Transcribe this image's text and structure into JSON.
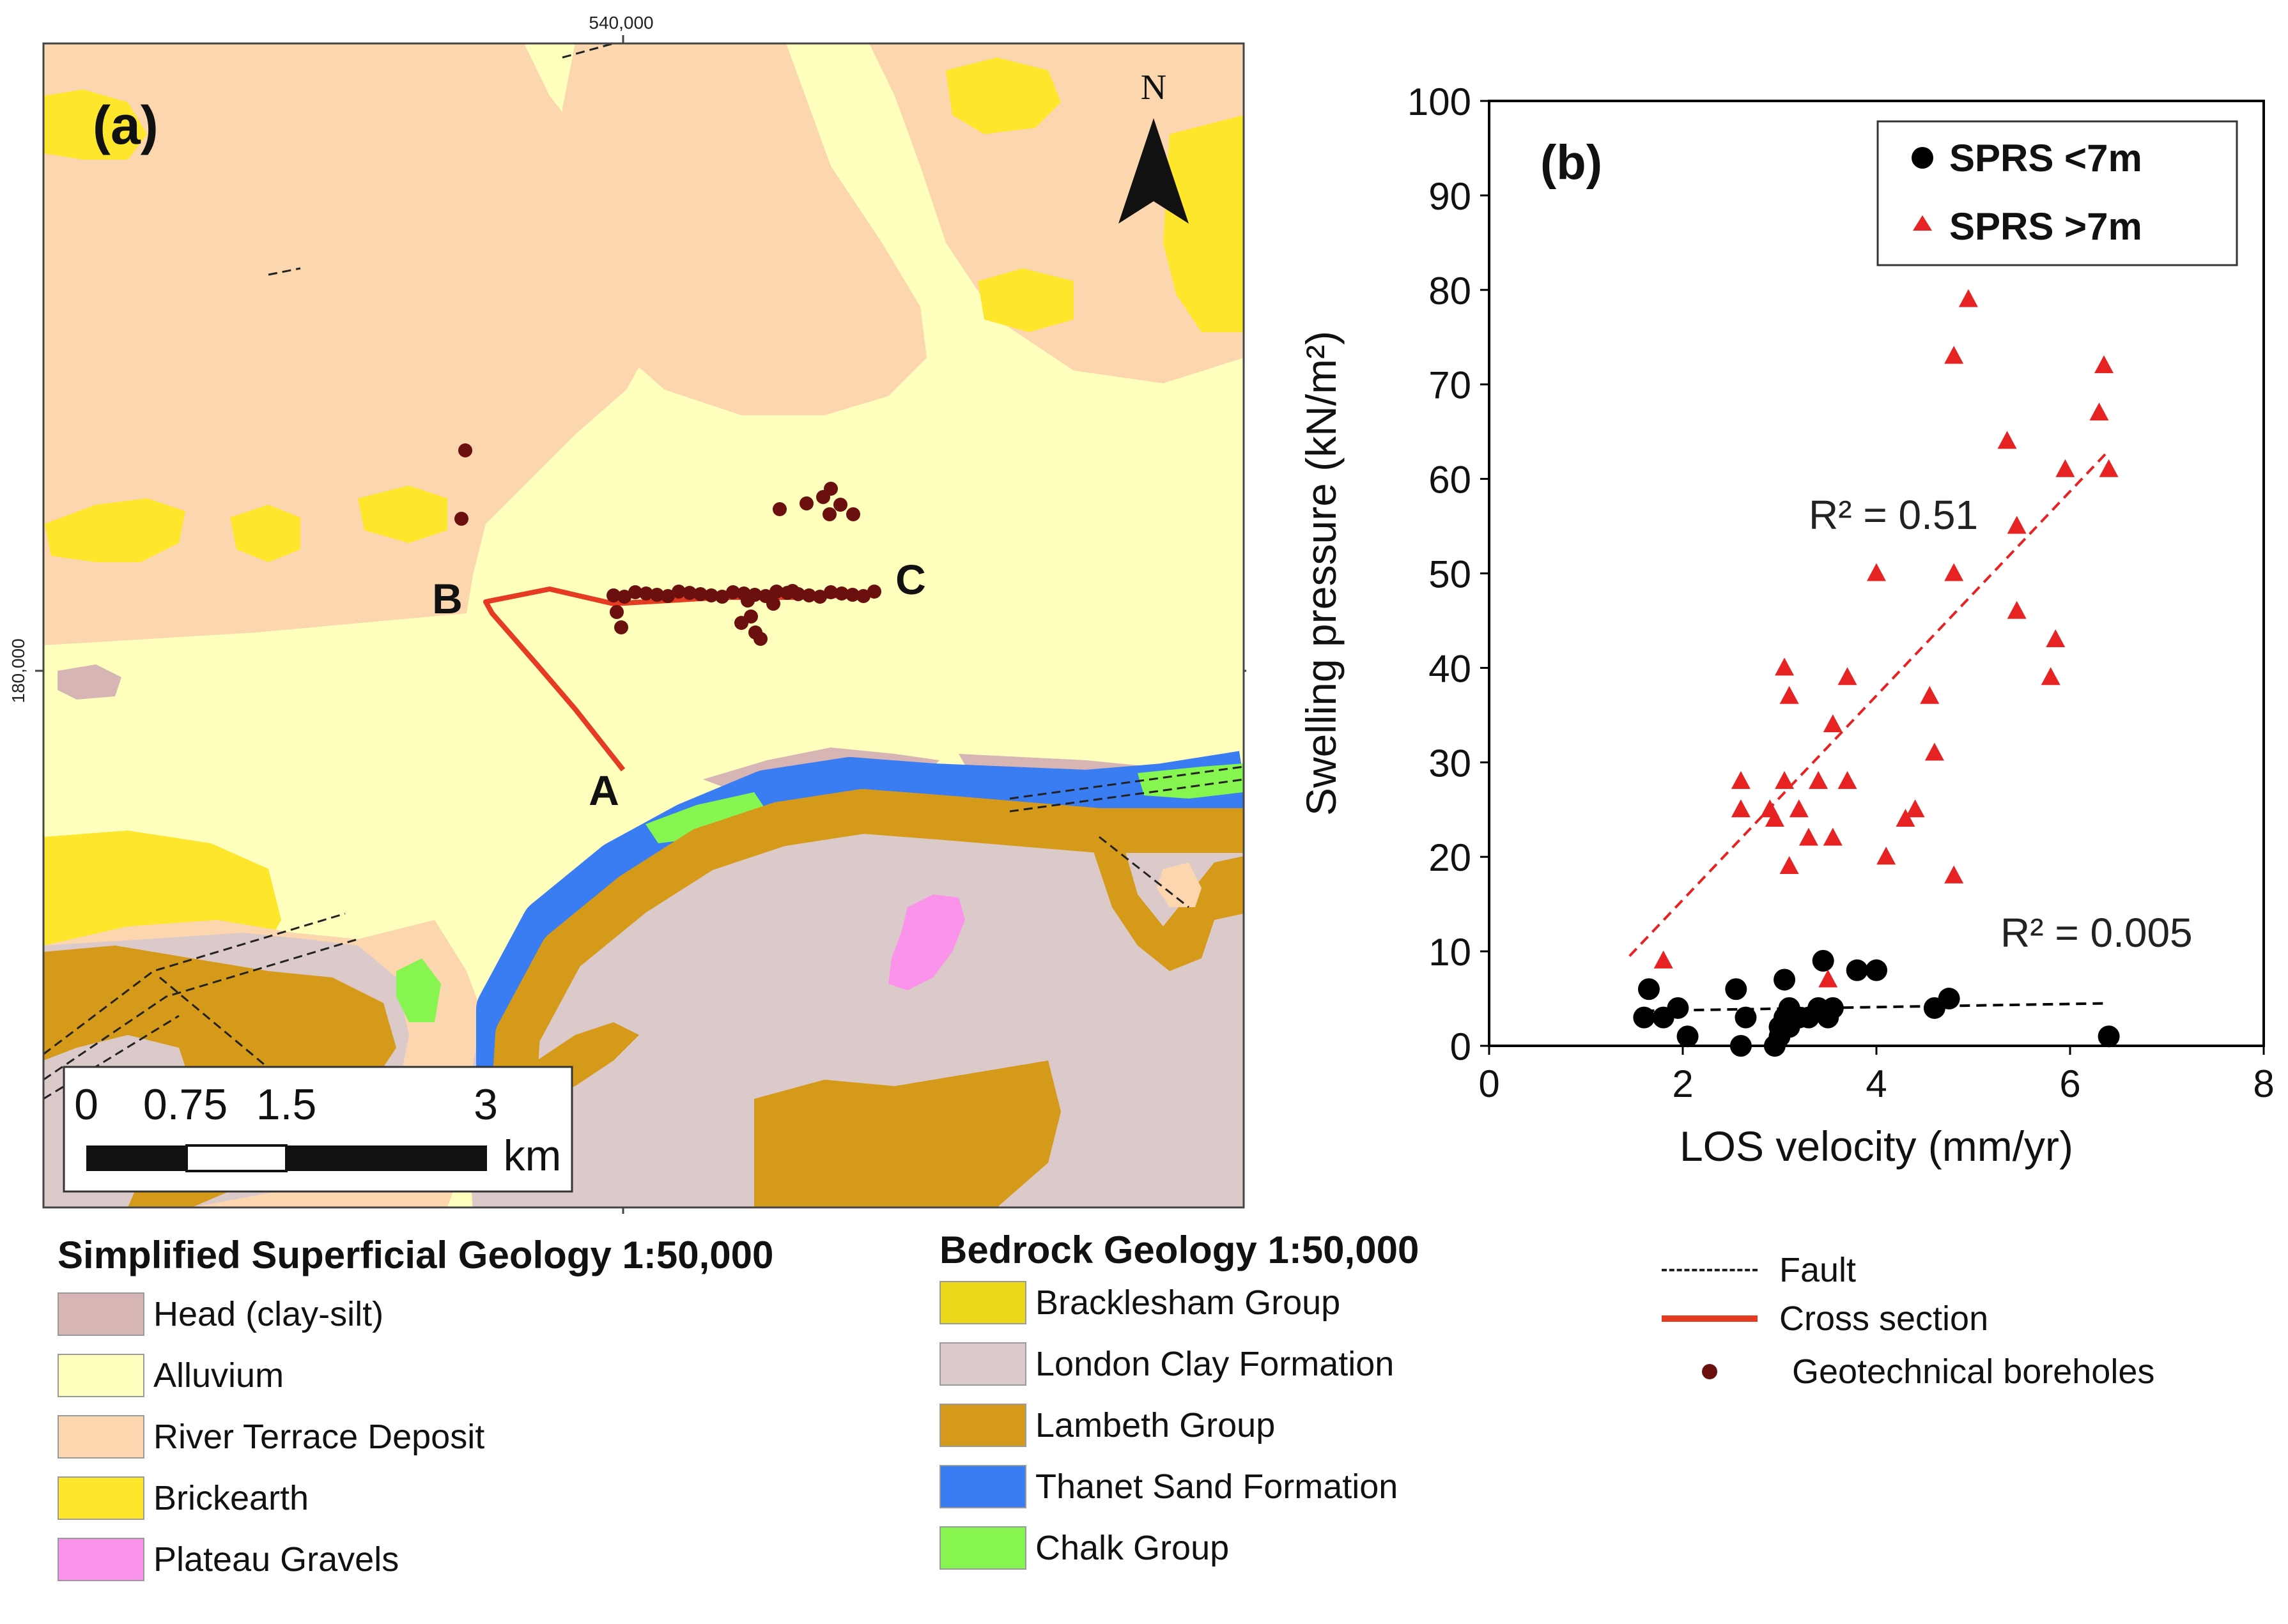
{
  "map": {
    "panel_label": "(a)",
    "north_label": "N",
    "top_coord": "540,000",
    "side_coord": "180,000",
    "point_labels": [
      "A",
      "B",
      "C"
    ],
    "scalebar": {
      "ticks": [
        "0",
        "0.75",
        "1.5",
        "3"
      ],
      "unit": "km"
    },
    "colors": {
      "head": "#d8b5b5",
      "alluvium": "#fefebd",
      "river_terrace": "#fbd6af",
      "brickearth": "#fde62b",
      "plateau_gravels": "#fb93ec",
      "london_clay": "#dcc9c9",
      "lambeth": "#d59a19",
      "thanet": "#3a7cf2",
      "chalk": "#86f550",
      "cross_section": "#e53b22",
      "borehole": "#6b0f0f"
    }
  },
  "legend_superficial": {
    "title": "Simplified Superficial Geology 1:50,000",
    "items": [
      {
        "label": "Head (clay-silt)",
        "color": "#d8b5b5"
      },
      {
        "label": "Alluvium",
        "color": "#fefebd"
      },
      {
        "label": "River Terrace Deposit",
        "color": "#fbd6af"
      },
      {
        "label": "Brickearth",
        "color": "#fde62b"
      },
      {
        "label": "Plateau Gravels",
        "color": "#fb93ec"
      }
    ]
  },
  "legend_bedrock": {
    "title": "Bedrock Geology 1:50,000",
    "items": [
      {
        "label": "Bracklesham Group",
        "color": "#ecd81a"
      },
      {
        "label": "London Clay Formation",
        "color": "#dcc9c9"
      },
      {
        "label": "Lambeth Group",
        "color": "#d59a19"
      },
      {
        "label": "Thanet Sand Formation",
        "color": "#3a7cf2"
      },
      {
        "label": "Chalk Group",
        "color": "#86f550"
      }
    ]
  },
  "legend_symbols": {
    "items": [
      {
        "label": "Fault",
        "symbol": "dashed-line"
      },
      {
        "label": "Cross section",
        "symbol": "red-line"
      },
      {
        "label": "Geotechnical boreholes",
        "symbol": "dot"
      }
    ]
  },
  "chart_data": {
    "type": "scatter",
    "panel_label": "(b)",
    "title": "",
    "xlabel": "LOS velocity (mm/yr)",
    "ylabel": "Swelling pressure (kN/m²)",
    "xlim": [
      0,
      8
    ],
    "ylim": [
      0,
      100
    ],
    "xticks": [
      "0",
      "2",
      "4",
      "6",
      "8"
    ],
    "yticks": [
      "0",
      "10",
      "20",
      "30",
      "40",
      "50",
      "60",
      "70",
      "80",
      "90",
      "100"
    ],
    "legend_position": "top-right",
    "series": [
      {
        "name": "SPRS <7m",
        "marker": "circle",
        "color": "#000000",
        "x": [
          1.65,
          1.6,
          1.8,
          1.95,
          2.05,
          2.55,
          2.65,
          2.6,
          2.95,
          3.0,
          3.05,
          3.05,
          3.1,
          3.2,
          3.3,
          3.4,
          3.45,
          3.5,
          3.55,
          3.8,
          4.0,
          4.6,
          4.75,
          6.4,
          3.0,
          3.1
        ],
        "y": [
          6,
          3,
          3,
          4,
          1,
          6,
          3,
          0,
          0,
          1,
          3,
          7,
          2,
          3,
          3,
          4,
          9,
          3,
          4,
          8,
          8,
          4,
          5,
          1,
          2,
          4
        ],
        "trend": {
          "x": [
            1.6,
            6.4
          ],
          "y": [
            3.7,
            4.5
          ],
          "r2": "R² = 0.005"
        }
      },
      {
        "name": "SPRS >7m",
        "marker": "triangle",
        "color": "#e62222",
        "x": [
          1.8,
          2.6,
          2.6,
          2.9,
          2.95,
          3.05,
          3.05,
          3.1,
          3.1,
          3.2,
          3.3,
          3.4,
          3.55,
          3.55,
          3.5,
          3.7,
          3.7,
          4.0,
          4.1,
          4.3,
          4.4,
          4.55,
          4.6,
          4.8,
          4.8,
          4.8,
          4.95,
          5.35,
          5.45,
          5.45,
          5.8,
          5.85,
          5.95,
          6.3,
          6.35,
          6.4
        ],
        "y": [
          9,
          25,
          28,
          25,
          24,
          40,
          28,
          19,
          37,
          25,
          22,
          28,
          22,
          34,
          7,
          28,
          39,
          50,
          20,
          24,
          25,
          37,
          31,
          18,
          50,
          73,
          79,
          64,
          55,
          46,
          39,
          43,
          61,
          67,
          72,
          61
        ],
        "trend": {
          "x": [
            1.45,
            6.4
          ],
          "y": [
            9.5,
            63
          ],
          "r2": "R² = 0.51"
        }
      }
    ]
  }
}
